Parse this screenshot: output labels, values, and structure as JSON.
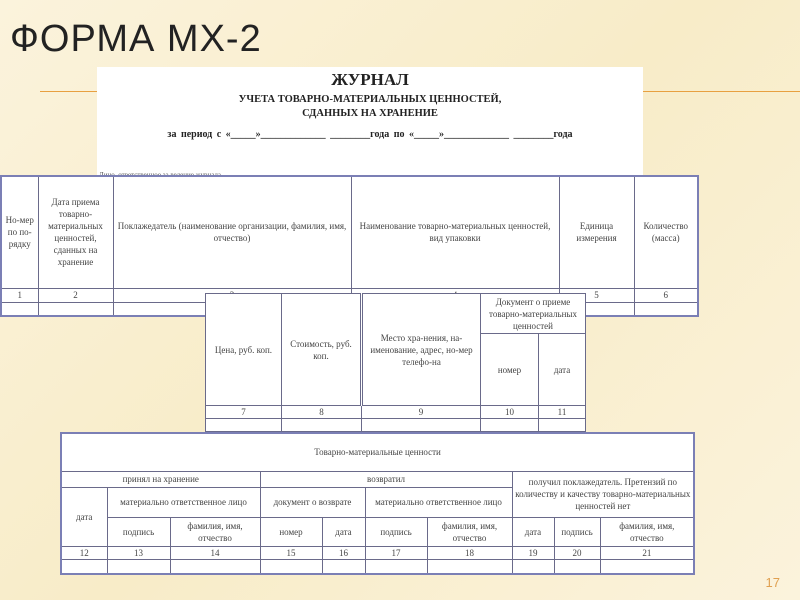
{
  "slide": {
    "title": "ФОРМА МХ-2",
    "page_number": "17",
    "accent_color": "#e8a040"
  },
  "journal": {
    "title": "ЖУРНАЛ",
    "subtitle_1": "УЧЕТА ТОВАРНО-МАТЕРИАЛЬНЫХ ЦЕННОСТЕЙ,",
    "subtitle_2": "СДАННЫХ НА ХРАНЕНИЕ",
    "period": "за период с «_____»_____________ ________года     по «_____»_____________ ________года",
    "responsible": "Лицо, ответственное за ведение журнала"
  },
  "table1": {
    "headers": [
      "Но-мер по по-рядку",
      "Дата приема товарно-материальных ценностей, сданных на хранение",
      "Поклажедатель (наименование организации, фамилия, имя, отчество)",
      "Наименование товарно-материальных ценностей, вид упаковки",
      "Единица измерения",
      "Количество (масса)"
    ],
    "numbers": [
      "1",
      "2",
      "3",
      "4",
      "5",
      "6"
    ]
  },
  "table2": {
    "headers": [
      "Цена, руб. коп.",
      "Стоимость, руб. коп.",
      "Место хра-нения, на-именование, адрес, но-мер телефо-на",
      "Документ о приеме товарно-материальных ценностей",
      "номер",
      "дата"
    ],
    "numbers": [
      "7",
      "8",
      "9",
      "10",
      "11"
    ]
  },
  "table3": {
    "title": "Товарно-материальные ценности",
    "group_accepted": "принял на хранение",
    "group_returned": "возвратил",
    "group_received": "получил поклажедатель. Претензий по количеству и качеству товарно-материальных ценностей нет",
    "date": "дата",
    "responsible_person": "материально ответственное лицо",
    "return_doc": "документ о возврате",
    "signature": "подпись",
    "full_name": "фамилия, имя, отчество",
    "number": "номер",
    "numbers": [
      "12",
      "13",
      "14",
      "15",
      "16",
      "17",
      "18",
      "19",
      "20",
      "21"
    ]
  }
}
